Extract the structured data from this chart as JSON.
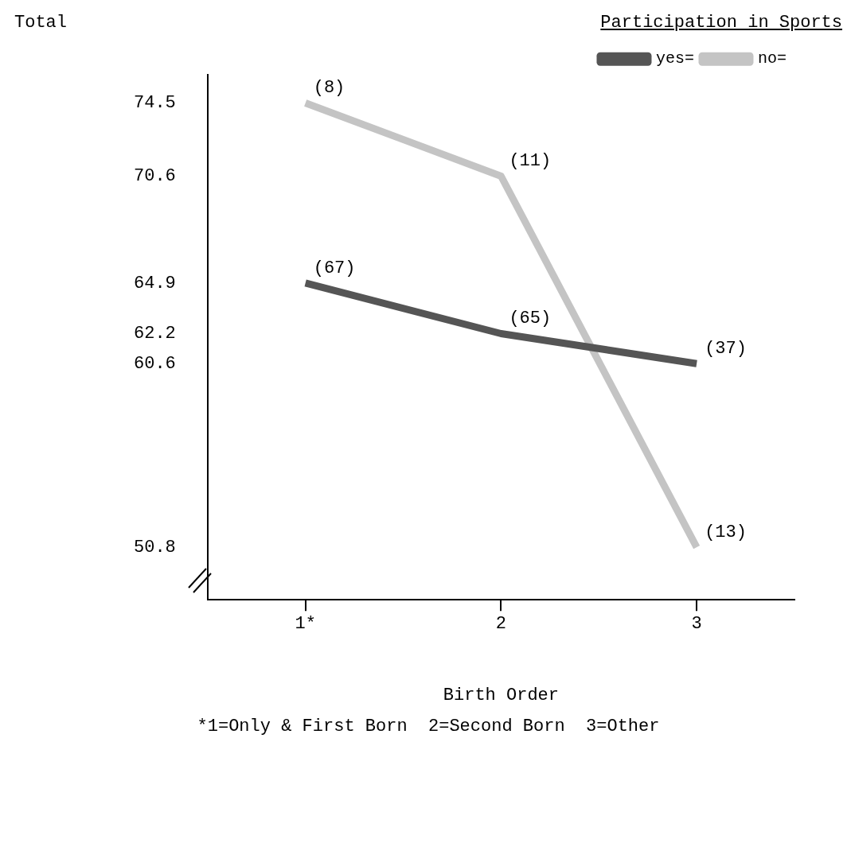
{
  "chart_data": {
    "type": "line",
    "title": "Participation in Sports",
    "ylabel": "Total",
    "xlabel": "Birth Order",
    "categories": [
      "1*",
      "2",
      "3"
    ],
    "series": [
      {
        "name": "yes=",
        "color": "#555555",
        "values": [
          64.9,
          62.2,
          60.6
        ]
      },
      {
        "name": "no=",
        "color": "#c4c4c4",
        "values": [
          74.5,
          70.6,
          50.8
        ]
      }
    ],
    "ylim": [
      48,
      76
    ],
    "yticks": [
      50.8,
      60.6,
      62.2,
      64.9,
      70.6,
      74.5
    ],
    "legend": "top right",
    "grid": false,
    "marker": "none",
    "annotations": [
      {
        "text": "(67)",
        "x": "1*",
        "y": 64.9
      },
      {
        "text": "(65)",
        "x": "2",
        "y": 62.2
      },
      {
        "text": "(37)",
        "x": "3",
        "y": 60.6
      },
      {
        "text": "(8)",
        "x": "1*",
        "y": 74.5
      },
      {
        "text": "(11)",
        "x": "2",
        "y": 70.6
      },
      {
        "text": "(13)",
        "x": "3",
        "y": 50.8
      },
      "*1=Only & First Born  2=Second Born  3=Other"
    ]
  }
}
